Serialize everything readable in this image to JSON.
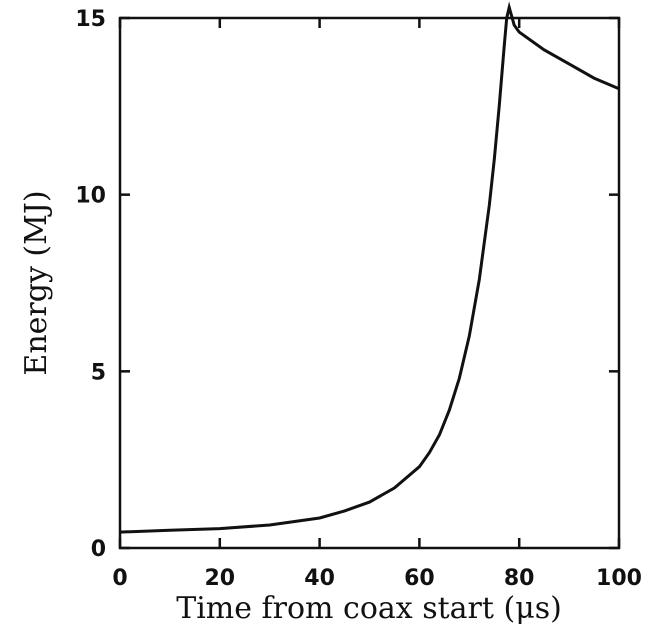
{
  "chart_data": {
    "type": "line",
    "title": "",
    "xlabel": "Time from coax start (μs)",
    "ylabel": "Energy (MJ)",
    "xlim": [
      0,
      100
    ],
    "ylim": [
      0,
      15
    ],
    "xticks": [
      0,
      20,
      40,
      60,
      80,
      100
    ],
    "xtick_labels": [
      "0",
      "20",
      "40",
      "60",
      "80",
      "100"
    ],
    "yticks": [
      0,
      5,
      10,
      15
    ],
    "ytick_labels": [
      "0",
      "5",
      "10",
      "15"
    ],
    "grid": false,
    "line_color": "#111111",
    "series": [
      {
        "x": [
          0,
          10,
          20,
          30,
          40,
          45,
          50,
          55,
          60,
          62,
          64,
          66,
          68,
          70,
          72,
          74,
          75,
          76,
          77,
          77.5,
          78,
          79,
          80,
          85,
          90,
          95,
          100
        ],
        "y": [
          0.45,
          0.5,
          0.55,
          0.65,
          0.85,
          1.05,
          1.3,
          1.7,
          2.3,
          2.7,
          3.2,
          3.9,
          4.8,
          6.0,
          7.6,
          9.7,
          11.0,
          12.5,
          14.2,
          15.0,
          15.3,
          14.8,
          14.6,
          14.1,
          13.7,
          13.3,
          13.0
        ]
      }
    ]
  }
}
